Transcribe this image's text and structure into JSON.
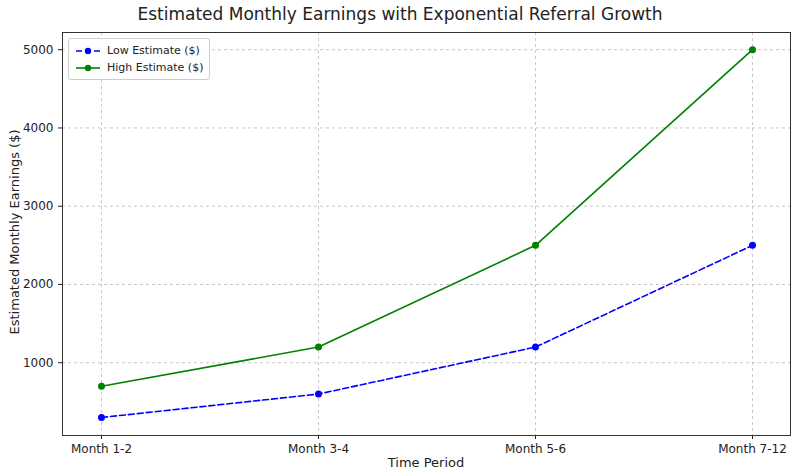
{
  "chart_data": {
    "type": "line",
    "title": "Estimated Monthly Earnings with Exponential Referral Growth",
    "x_label": "Time Period",
    "y_label": "Estimated Monthly Earnings ($)",
    "categories": [
      "Month 1-2",
      "Month 3-4",
      "Month 5-6",
      "Month 7-12"
    ],
    "series": [
      {
        "name": "Low Estimate ($)",
        "color": "blue",
        "values": [
          300,
          600,
          1200,
          2500
        ],
        "marker": "o",
        "line_style": "dashed"
      },
      {
        "name": "High Estimate ($)",
        "color": "green",
        "values": [
          700,
          1200,
          2500,
          5000
        ],
        "marker": "o",
        "line_style": "solid"
      }
    ],
    "ylim": [
      70,
      5220
    ],
    "yticks": [
      1000,
      2000,
      3000,
      4000,
      5000
    ],
    "grid": true,
    "legend": "upper left"
  }
}
